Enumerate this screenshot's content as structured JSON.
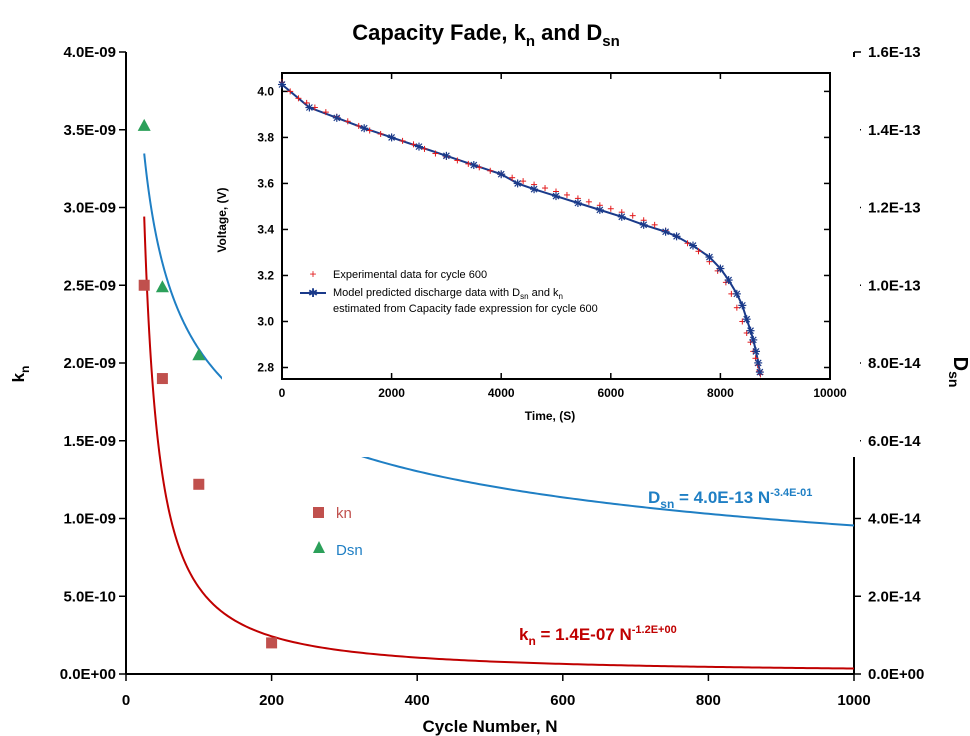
{
  "chart_data": [
    {
      "type": "scatter",
      "title": "Capacity Fade, k",
      "title_sub1": "n",
      "title_and": " and D",
      "title_sub2": "sn",
      "xlabel": "Cycle Number, N",
      "ylabel_left": "k",
      "ylabel_left_sub": "n",
      "ylabel_right": "D",
      "ylabel_right_sub": "sn",
      "xlim": [
        0,
        1000
      ],
      "x_ticks": [
        "0",
        "200",
        "400",
        "600",
        "800",
        "1000"
      ],
      "ylim_left": [
        0,
        4e-09
      ],
      "y_ticks_left": [
        "0.0E+00",
        "5.0E-10",
        "1.0E-09",
        "1.5E-09",
        "2.0E-09",
        "2.5E-09",
        "3.0E-09",
        "3.5E-09",
        "4.0E-09"
      ],
      "ylim_right": [
        0,
        1.6e-13
      ],
      "y_ticks_right": [
        "0.0E+00",
        "2.0E-14",
        "4.0E-14",
        "6.0E-14",
        "8.0E-14",
        "1.0E-13",
        "1.2E-13",
        "1.4E-13",
        "1.6E-13"
      ],
      "series": [
        {
          "name": "kn",
          "axis": "left",
          "marker": "square",
          "color": "#c0504d",
          "x": [
            25,
            50,
            100,
            200
          ],
          "y": [
            2.5e-09,
            1.9e-09,
            1.22e-09,
            2e-10
          ]
        },
        {
          "name": "Dsn",
          "axis": "right",
          "marker": "triangle",
          "color": "#2ca05a",
          "x": [
            25,
            50,
            100,
            200
          ],
          "y": [
            1.41e-13,
            9.95e-14,
            8.2e-14,
            6.7e-14
          ]
        }
      ],
      "fits": [
        {
          "series": "kn",
          "axis": "left",
          "color": "#c00000",
          "coef": 1.4e-07,
          "exp": -1.2,
          "x_start": 25,
          "label_main": "k",
          "label_sub": "n",
          "label_rest": " = 1.4E-07 N",
          "label_sup": "-1.2E+00"
        },
        {
          "series": "Dsn",
          "axis": "right",
          "color": "#1f7fc4",
          "coef": 4e-13,
          "exp": -0.34,
          "x_start": 25,
          "label_main": "D",
          "label_sub": "sn",
          "label_rest": " = 4.0E-13 N",
          "label_sup": "-3.4E-01"
        }
      ],
      "legend": {
        "placement": "center"
      },
      "grid": false
    },
    {
      "type": "line",
      "title": "",
      "xlabel": "Time, (S)",
      "ylabel": "Voltage, (V)",
      "xlim": [
        0,
        10000
      ],
      "ylim": [
        2.75,
        4.08
      ],
      "x_ticks": [
        "0",
        "2000",
        "4000",
        "6000",
        "8000",
        "10000"
      ],
      "y_ticks": [
        "2.8",
        "3.0",
        "3.2",
        "3.4",
        "3.6",
        "3.8",
        "4.0"
      ],
      "legend": {
        "placement": "bottom-left",
        "experimental": "Experimental data for cycle 600",
        "model_line1_a": "Model predicted discharge data with D",
        "model_line1_sub1": "sn",
        "model_line1_b": " and k",
        "model_line1_sub2": "n",
        "model_line2": "estimated from Capacity fade expression for cycle 600"
      },
      "series": [
        {
          "name": "Experimental data for cycle 600",
          "marker": "plus",
          "color": "#e31a1c",
          "x": [
            0,
            150,
            300,
            450,
            600,
            800,
            1000,
            1200,
            1400,
            1600,
            1800,
            2000,
            2200,
            2400,
            2600,
            2800,
            3000,
            3200,
            3400,
            3600,
            3800,
            4000,
            4200,
            4400,
            4600,
            4800,
            5000,
            5200,
            5400,
            5600,
            5800,
            6000,
            6200,
            6400,
            6600,
            6800,
            7000,
            7200,
            7400,
            7600,
            7800,
            7950,
            8100,
            8200,
            8300,
            8400,
            8480,
            8550,
            8600,
            8640,
            8680,
            8710,
            8730
          ],
          "y": [
            4.04,
            4.0,
            3.97,
            3.95,
            3.93,
            3.91,
            3.89,
            3.87,
            3.85,
            3.83,
            3.815,
            3.8,
            3.785,
            3.77,
            3.75,
            3.73,
            3.715,
            3.7,
            3.685,
            3.67,
            3.655,
            3.64,
            3.625,
            3.61,
            3.595,
            3.58,
            3.565,
            3.55,
            3.535,
            3.52,
            3.505,
            3.49,
            3.475,
            3.46,
            3.44,
            3.42,
            3.395,
            3.37,
            3.34,
            3.305,
            3.26,
            3.22,
            3.17,
            3.12,
            3.06,
            3.0,
            2.95,
            2.91,
            2.87,
            2.84,
            2.81,
            2.785,
            2.77
          ]
        },
        {
          "name": "Model predicted discharge data",
          "marker": "asterisk",
          "color": "#1a3a8a",
          "x": [
            0,
            500,
            1000,
            1500,
            2000,
            2500,
            3000,
            3500,
            4000,
            4300,
            4600,
            5000,
            5400,
            5800,
            6200,
            6600,
            7000,
            7200,
            7500,
            7800,
            8000,
            8150,
            8300,
            8400,
            8480,
            8550,
            8600,
            8650,
            8690,
            8720
          ],
          "y": [
            4.03,
            3.93,
            3.885,
            3.84,
            3.8,
            3.76,
            3.72,
            3.68,
            3.64,
            3.6,
            3.575,
            3.545,
            3.515,
            3.485,
            3.455,
            3.42,
            3.39,
            3.37,
            3.33,
            3.28,
            3.23,
            3.18,
            3.12,
            3.07,
            3.01,
            2.96,
            2.92,
            2.87,
            2.82,
            2.78
          ]
        }
      ]
    }
  ]
}
